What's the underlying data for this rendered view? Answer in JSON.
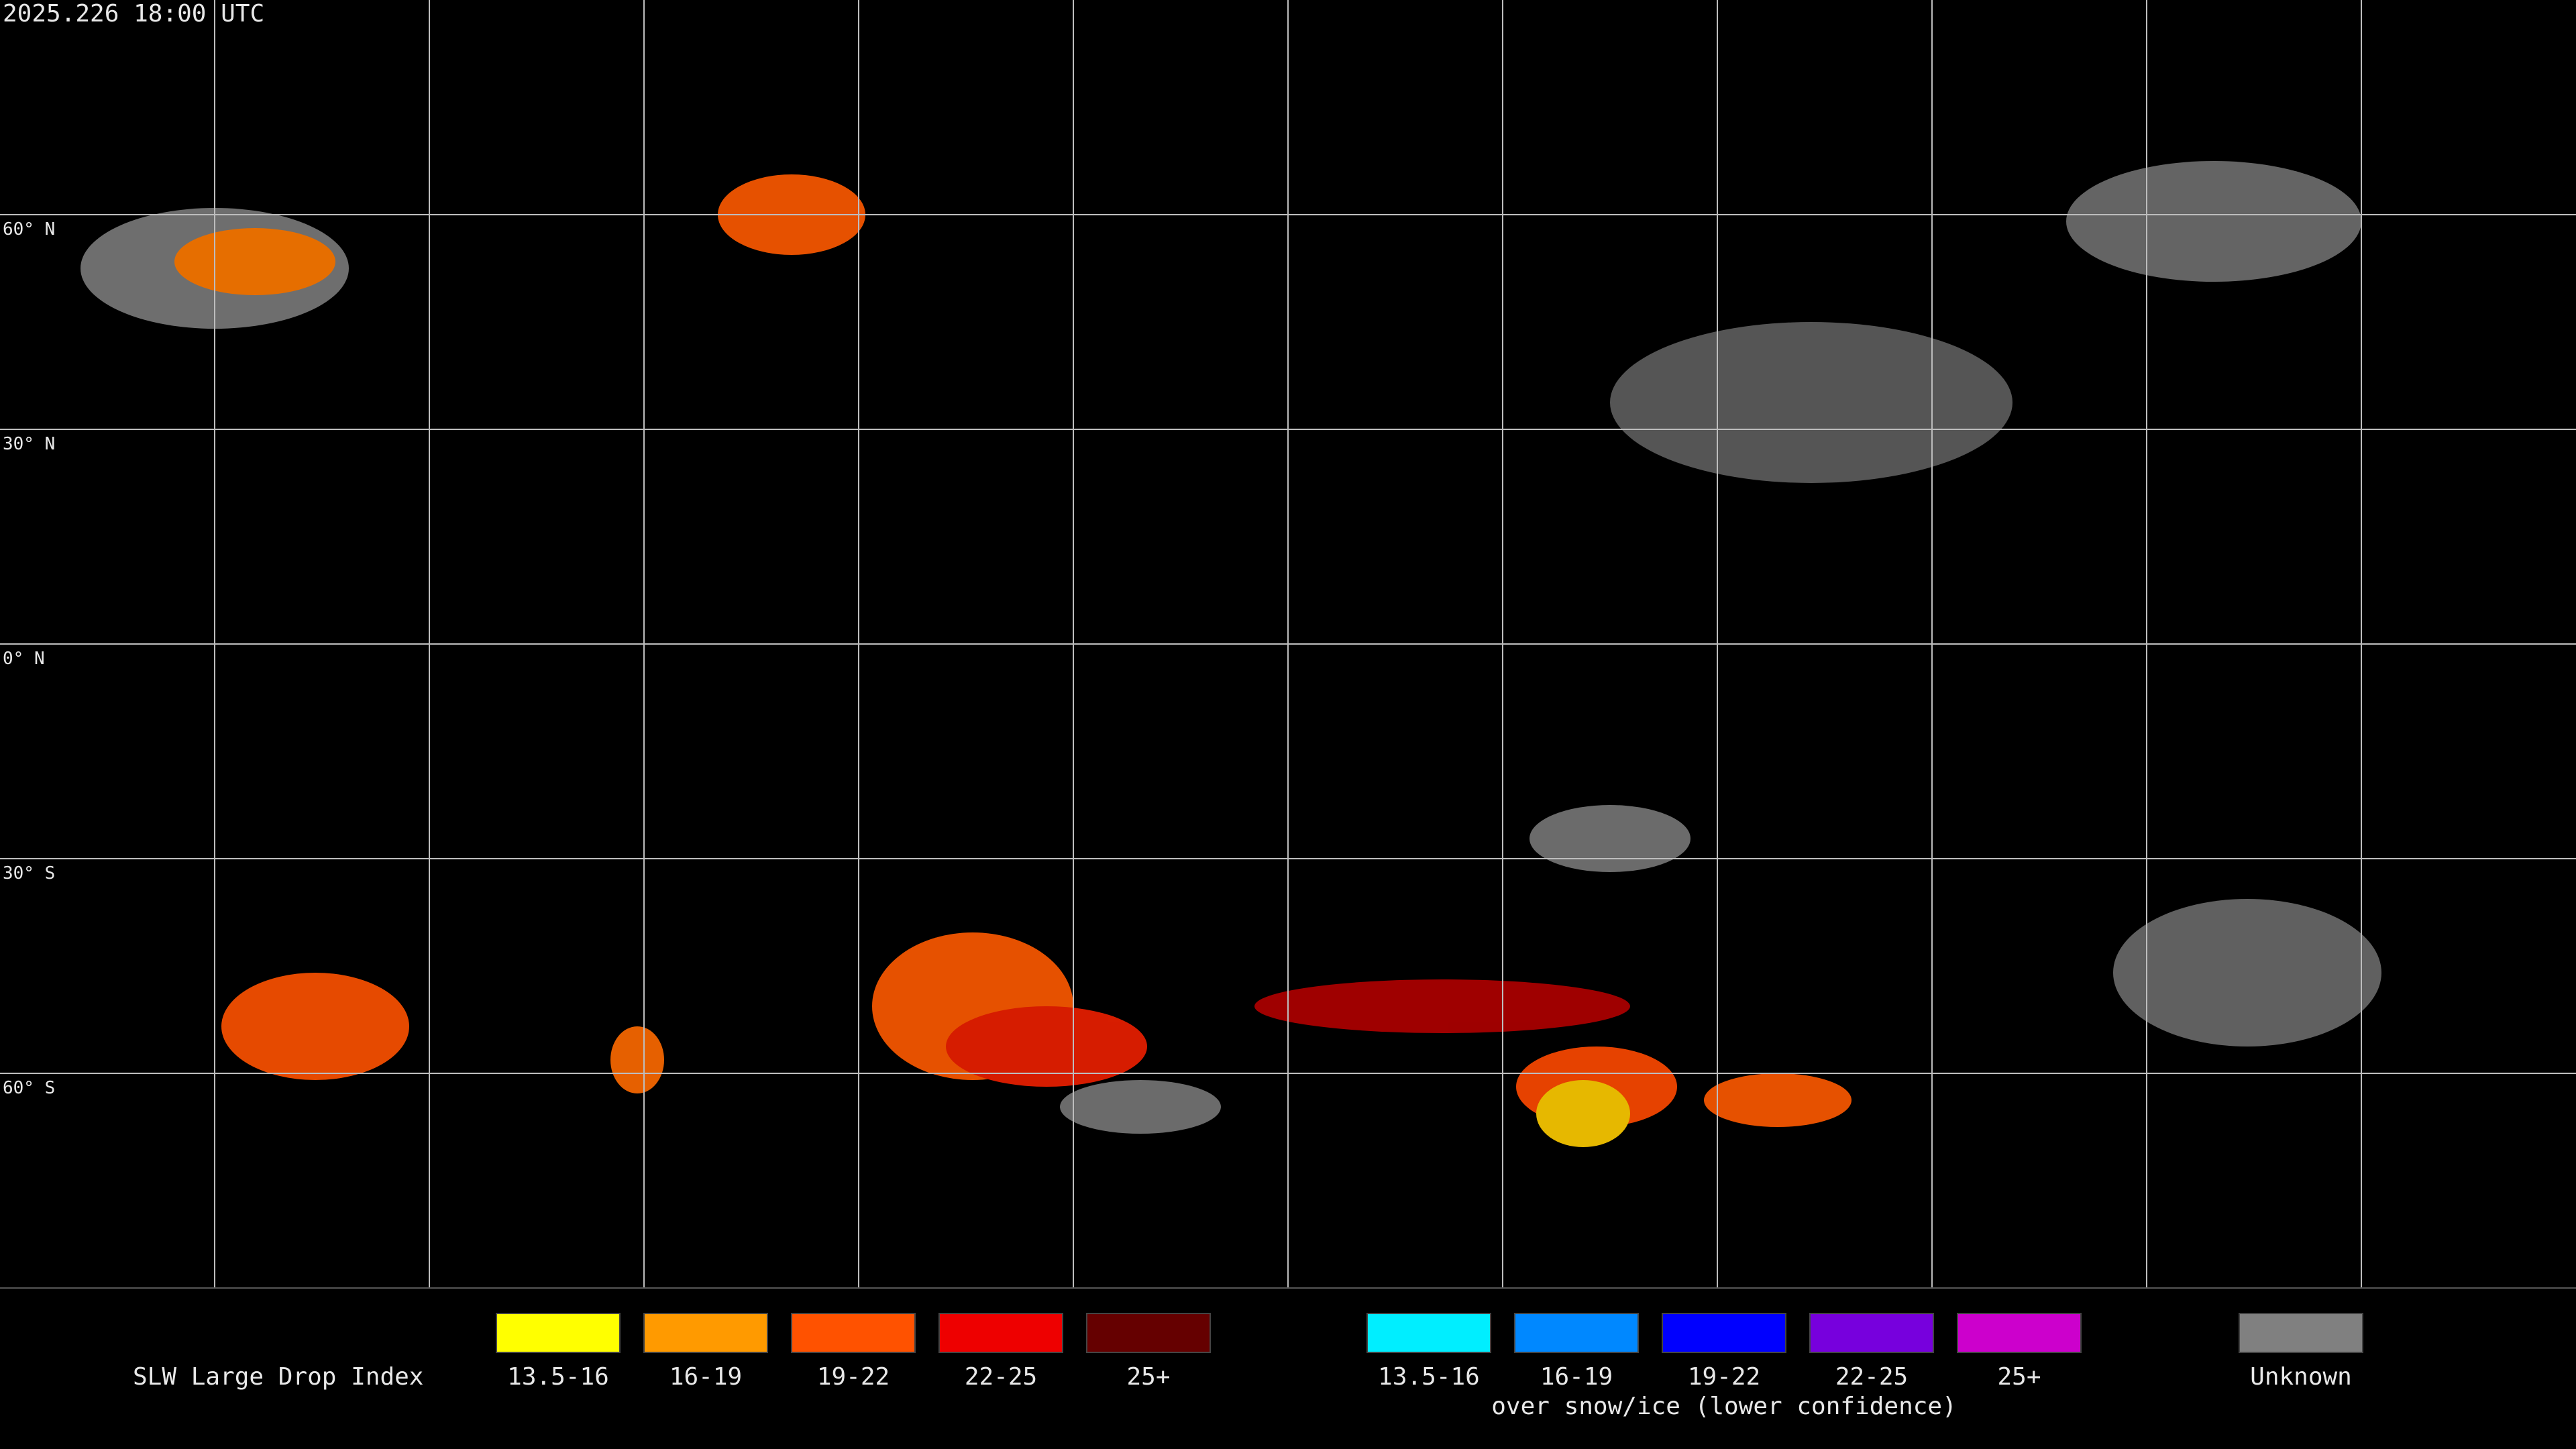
{
  "header": {
    "timestamp": "2025.226 18:00 UTC"
  },
  "map": {
    "latitude_labels": [
      "60° N",
      "30° N",
      "0° N",
      "30° S",
      "60° S"
    ]
  },
  "legend": {
    "title": "SLW Large Drop Index",
    "groups": [
      {
        "items": [
          {
            "label": "13.5-16",
            "color": "#ffff00"
          },
          {
            "label": "16-19",
            "color": "#ff9a00"
          },
          {
            "label": "19-22",
            "color": "#ff5200"
          },
          {
            "label": "22-25",
            "color": "#ee0000"
          },
          {
            "label": "25+",
            "color": "#650000"
          }
        ]
      },
      {
        "items": [
          {
            "label": "13.5-16",
            "color": "#00eeff"
          },
          {
            "label": "16-19",
            "color": "#0088ff"
          },
          {
            "label": "19-22",
            "color": "#0000ff"
          },
          {
            "label": "22-25",
            "color": "#7700dd"
          },
          {
            "label": "25+",
            "color": "#cc00cc"
          }
        ],
        "caption": "over snow/ice (lower confidence)"
      },
      {
        "items": [
          {
            "label": "Unknown",
            "color": "#808080"
          }
        ]
      }
    ]
  }
}
